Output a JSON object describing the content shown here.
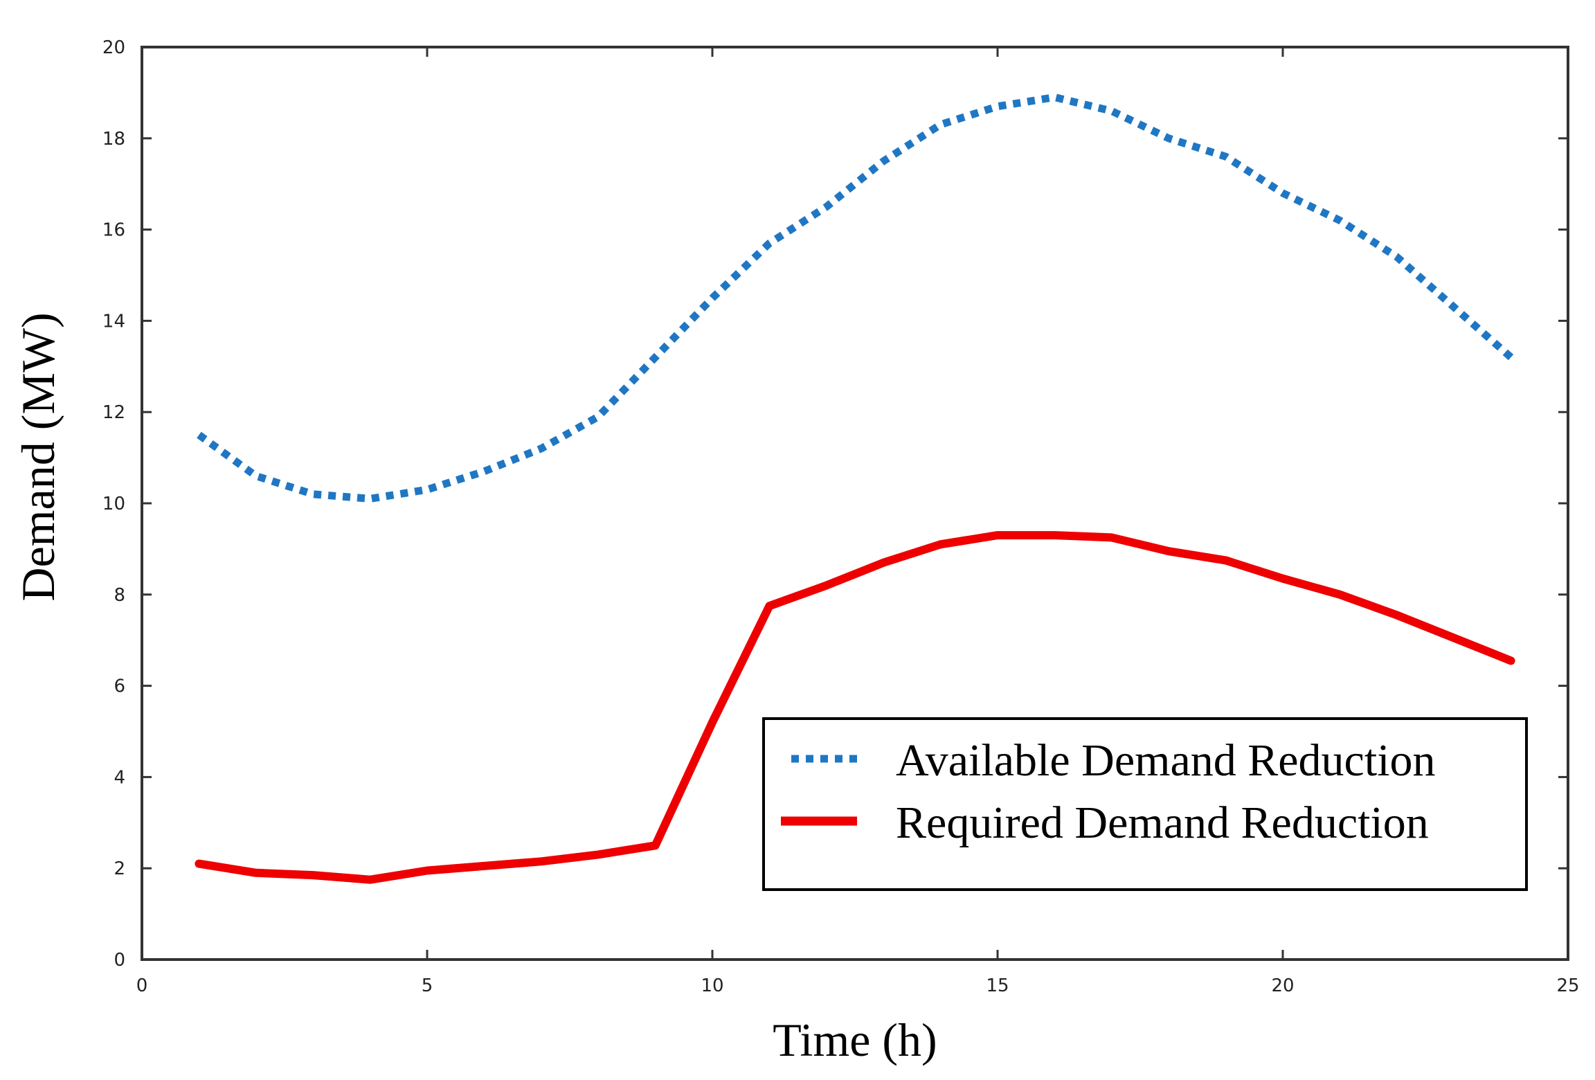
{
  "chart_data": {
    "type": "line",
    "title": "",
    "xlabel": "Time (h)",
    "ylabel": "Demand (MW)",
    "xlim": [
      0,
      25
    ],
    "ylim": [
      0,
      20
    ],
    "xticks": [
      0,
      5,
      10,
      15,
      20,
      25
    ],
    "yticks": [
      0,
      2,
      4,
      6,
      8,
      10,
      12,
      14,
      16,
      18,
      20
    ],
    "grid": false,
    "legend_position": "lower-right",
    "x": [
      1,
      2,
      3,
      4,
      5,
      6,
      7,
      8,
      9,
      10,
      11,
      12,
      13,
      14,
      15,
      16,
      17,
      18,
      19,
      20,
      21,
      22,
      23,
      24
    ],
    "series": [
      {
        "name": "Available Demand Reduction",
        "style": "dotted",
        "color": "#1f77c4",
        "values": [
          11.5,
          10.6,
          10.2,
          10.1,
          10.3,
          10.7,
          11.2,
          11.9,
          13.2,
          14.5,
          15.7,
          16.5,
          17.5,
          18.3,
          18.7,
          18.9,
          18.6,
          18.0,
          17.6,
          16.8,
          16.2,
          15.4,
          14.3,
          13.2
        ]
      },
      {
        "name": "Required Demand Reduction",
        "style": "solid",
        "color": "#ee0000",
        "values": [
          2.1,
          1.9,
          1.85,
          1.75,
          1.95,
          2.05,
          2.15,
          2.3,
          2.5,
          5.2,
          7.75,
          8.2,
          8.7,
          9.1,
          9.3,
          9.3,
          9.25,
          8.95,
          8.75,
          8.35,
          8.0,
          7.55,
          7.05,
          6.55
        ]
      }
    ]
  }
}
